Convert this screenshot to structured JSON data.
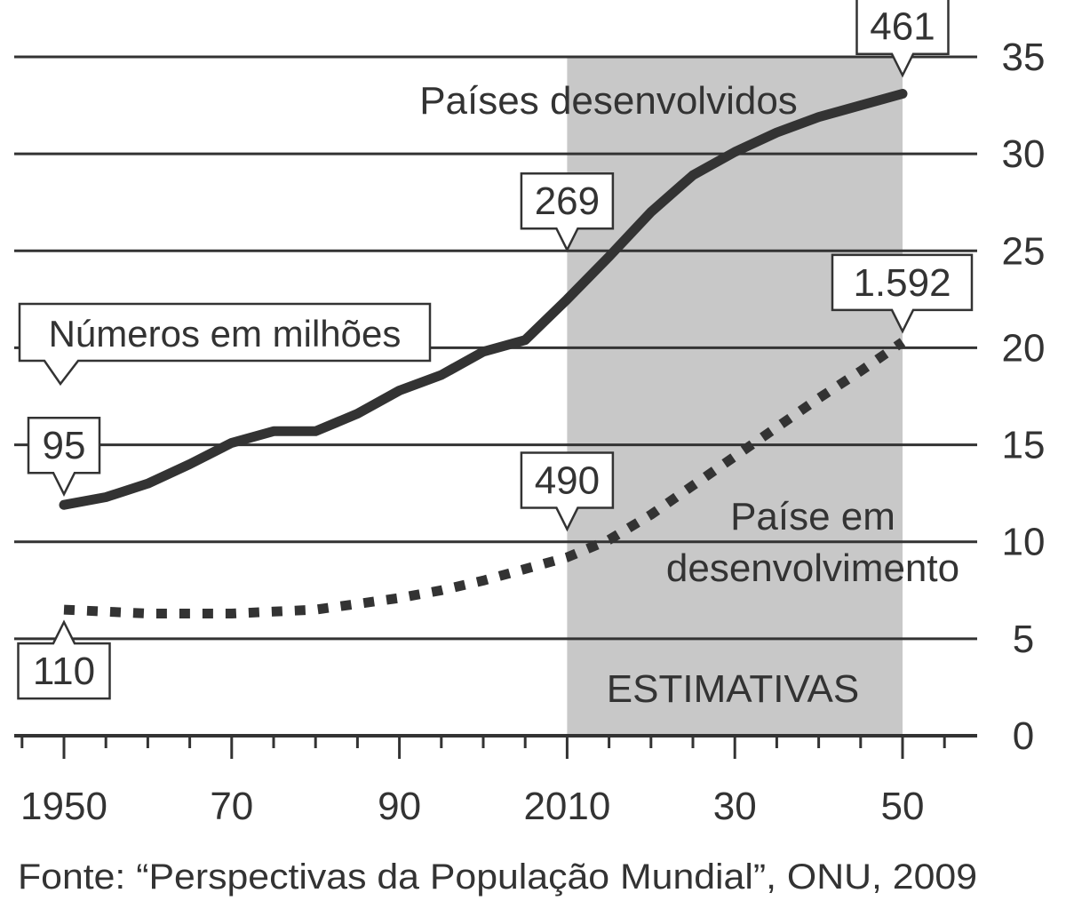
{
  "chart_data": {
    "type": "line",
    "x_tick_labels": [
      "1950",
      "70",
      "90",
      "2010",
      "30",
      "50"
    ],
    "x_tick_values": [
      1950,
      1970,
      1990,
      2010,
      2030,
      2050
    ],
    "y_tick_labels": [
      "0",
      "5",
      "10",
      "15",
      "20",
      "25",
      "30",
      "35"
    ],
    "y_tick_values": [
      0,
      5,
      10,
      15,
      20,
      25,
      30,
      35
    ],
    "xlim": [
      1944,
      2058
    ],
    "ylim": [
      0,
      35
    ],
    "grid": "horizontal",
    "shaded_region": {
      "x": [
        2010,
        2050
      ],
      "label": "ESTIMATIVAS",
      "color": "#c8c8c8"
    },
    "series": [
      {
        "name": "Países desenvolvidos",
        "style": "solid",
        "color": "#333333",
        "x": [
          1950,
          1955,
          1960,
          1965,
          1970,
          1975,
          1980,
          1985,
          1990,
          1995,
          2000,
          2005,
          2010,
          2015,
          2020,
          2025,
          2030,
          2035,
          2040,
          2045,
          2050
        ],
        "y": [
          11.9,
          12.3,
          13.0,
          14.0,
          15.1,
          15.7,
          15.7,
          16.6,
          17.8,
          18.6,
          19.8,
          20.4,
          22.5,
          24.7,
          27.0,
          28.9,
          30.1,
          31.1,
          31.9,
          32.5,
          33.1
        ]
      },
      {
        "name": "Paíse em desenvolvimento",
        "style": "dotted",
        "color": "#333333",
        "x": [
          1950,
          1955,
          1960,
          1965,
          1970,
          1975,
          1980,
          1985,
          1990,
          1995,
          2000,
          2005,
          2010,
          2015,
          2020,
          2025,
          2030,
          2035,
          2040,
          2045,
          2050
        ],
        "y": [
          6.5,
          6.4,
          6.3,
          6.3,
          6.3,
          6.4,
          6.5,
          6.8,
          7.1,
          7.5,
          8.0,
          8.6,
          9.2,
          10.1,
          11.4,
          12.9,
          14.4,
          15.9,
          17.4,
          18.8,
          20.3
        ]
      }
    ],
    "annotations": [
      {
        "text": "95",
        "x": 1950,
        "y": 11.9,
        "pointer": "down"
      },
      {
        "text": "110",
        "x": 1950,
        "y": 6.5,
        "pointer": "up"
      },
      {
        "text": "269",
        "x": 2010,
        "y": 24.5,
        "pointer": "down"
      },
      {
        "text": "490",
        "x": 2010,
        "y": 10.1,
        "pointer": "down"
      },
      {
        "text": "461",
        "x": 2050,
        "y": 33.5,
        "pointer": "down"
      },
      {
        "text": "1.592",
        "x": 2050,
        "y": 20.3,
        "pointer": "down"
      }
    ],
    "note_box": "Números em milhões",
    "series_label_1": "Países desenvolvidos",
    "series_label_2_line1": "Paíse em",
    "series_label_2_line2": "desenvolvimento",
    "source": "Fonte: “Perspectivas da População Mundial”, ONU, 2009"
  }
}
